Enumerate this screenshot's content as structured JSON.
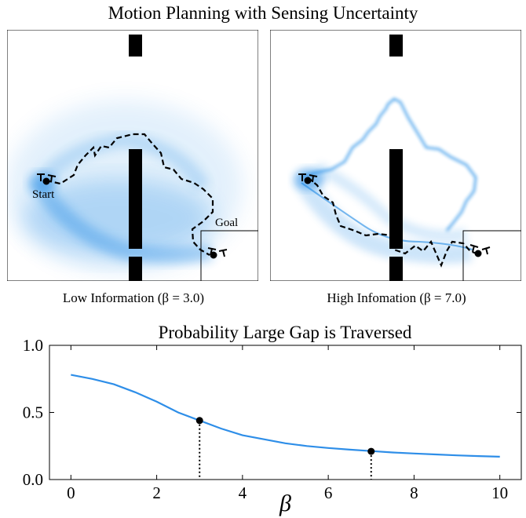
{
  "header": {
    "title": "Motion Planning with Sensing Uncertainty",
    "left_caption": "Low Information (β = 3.0)",
    "right_caption": "High Infomation (β = 7.0)"
  },
  "maps": {
    "start_label": "Start",
    "goal_label": "Goal",
    "colors": {
      "density": "#1e88e5",
      "path": "#000000",
      "wall": "#000000"
    }
  },
  "chart_data": {
    "type": "line",
    "title": "Probability Large Gap is Traversed",
    "xlabel": "β",
    "ylabel": "",
    "xlim": [
      -0.5,
      10.5
    ],
    "ylim": [
      0.0,
      1.0
    ],
    "xticks": [
      0,
      2,
      4,
      6,
      8,
      10
    ],
    "yticks": [
      0.0,
      0.5,
      1.0
    ],
    "x": [
      0,
      0.5,
      1,
      1.5,
      2,
      2.5,
      3,
      3.5,
      4,
      4.5,
      5,
      5.5,
      6,
      6.5,
      7,
      7.5,
      8,
      8.5,
      9,
      9.5,
      10
    ],
    "y": [
      0.78,
      0.75,
      0.71,
      0.65,
      0.58,
      0.5,
      0.44,
      0.38,
      0.33,
      0.3,
      0.27,
      0.25,
      0.235,
      0.223,
      0.212,
      0.202,
      0.194,
      0.187,
      0.18,
      0.175,
      0.17
    ],
    "highlight_points": [
      {
        "x": 3,
        "y": 0.44
      },
      {
        "x": 7,
        "y": 0.21
      }
    ],
    "line_color": "#2e8ee8",
    "grid": false
  }
}
